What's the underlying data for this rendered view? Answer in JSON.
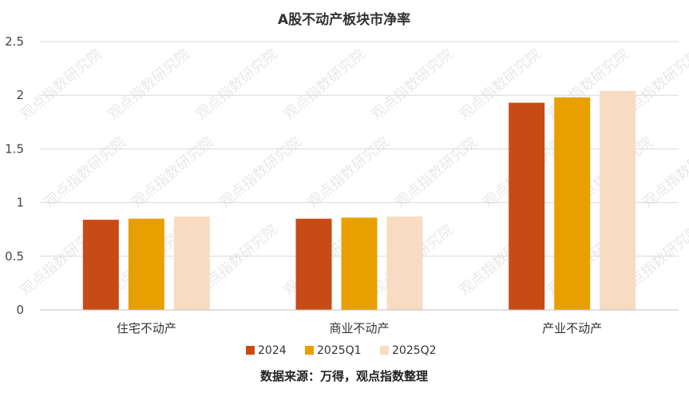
{
  "watermark": "观点指数研究院",
  "chart_data": {
    "type": "bar",
    "title": "A股不动产板块市净率",
    "categories": [
      "住宅不动产",
      "商业不动产",
      "产业不动产"
    ],
    "series": [
      {
        "name": "2024",
        "color": "#C84B16",
        "values": [
          0.84,
          0.85,
          1.93
        ]
      },
      {
        "name": "2025Q1",
        "color": "#E8A000",
        "values": [
          0.85,
          0.86,
          1.98
        ]
      },
      {
        "name": "2025Q2",
        "color": "#F7DCC2",
        "values": [
          0.87,
          0.87,
          2.04
        ]
      }
    ],
    "ylim": [
      0,
      2.5
    ],
    "yticks": [
      "0",
      "0.5",
      "1",
      "1.5",
      "2",
      "2.5"
    ],
    "grid": true,
    "legend": "bottom",
    "source": "数据来源：万得，观点指数整理"
  }
}
